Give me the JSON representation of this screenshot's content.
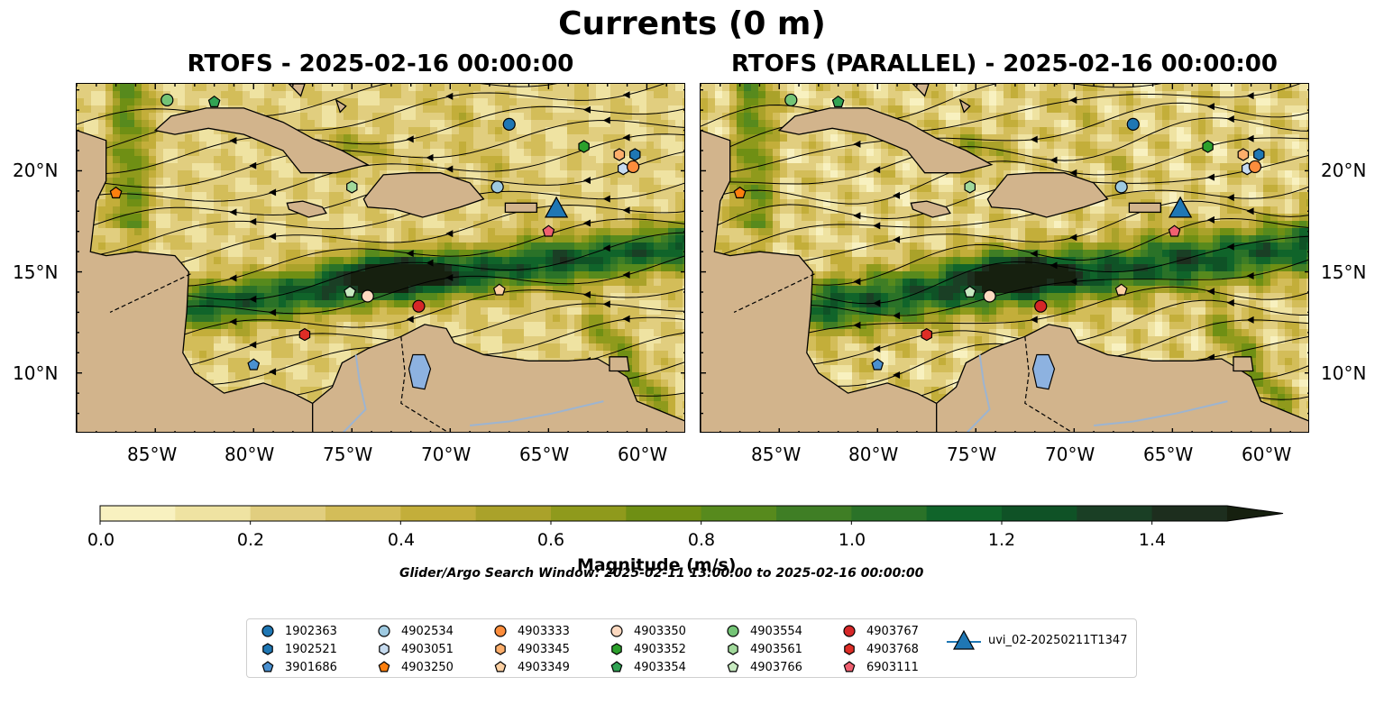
{
  "figure": {
    "suptitle": "Currents (0 m)",
    "left_title": "RTOFS - 2025-02-16 00:00:00",
    "right_title": "RTOFS (PARALLEL) - 2025-02-16 00:00:00",
    "lat_ticks": [
      "20°N",
      "15°N",
      "10°N"
    ],
    "lon_ticks": [
      "85°W",
      "80°W",
      "75°W",
      "70°W",
      "65°W",
      "60°W"
    ],
    "search_window": "Glider/Argo Search Window: 2025-02-11 13:00:00 to 2025-02-16 00:00:00"
  },
  "map": {
    "extent": {
      "lon": [
        -89,
        -58
      ],
      "lat": [
        7,
        24.3
      ]
    },
    "land_color": "#d2b48c",
    "lake_color": "#8db2e0",
    "river_color": "#9db4d0"
  },
  "colorbar": {
    "label": "Magnitude (m/s)",
    "ticks": [
      "0.0",
      "0.2",
      "0.4",
      "0.6",
      "0.8",
      "1.0",
      "1.2",
      "1.4"
    ],
    "levels": [
      0,
      0.1,
      0.2,
      0.3,
      0.4,
      0.5,
      0.6,
      0.7,
      0.8,
      0.9,
      1.0,
      1.1,
      1.2,
      1.3,
      1.4,
      1.5
    ],
    "colors": [
      "#f8f1c0",
      "#efe3a2",
      "#e1ce7f",
      "#d3bd59",
      "#c3ae3a",
      "#aaa22a",
      "#8f9a1c",
      "#6f8f14",
      "#578a1d",
      "#3f7e25",
      "#2a7228",
      "#10642a",
      "#0f5226",
      "#1a3f25",
      "#1d2e1e"
    ],
    "extend_color": "#16200f"
  },
  "legend": {
    "entries": [
      {
        "label": "1902363",
        "marker": "circle",
        "color": "#1f77b4"
      },
      {
        "label": "1902521",
        "marker": "hexagon",
        "color": "#1f77b4"
      },
      {
        "label": "3901686",
        "marker": "pentagon",
        "color": "#4a90d0"
      },
      {
        "label": "4902534",
        "marker": "circle",
        "color": "#9ecae1"
      },
      {
        "label": "4903051",
        "marker": "hexagon",
        "color": "#c6dbef"
      },
      {
        "label": "4903250",
        "marker": "pentagon",
        "color": "#fd7f0e"
      },
      {
        "label": "4903333",
        "marker": "circle",
        "color": "#fd8d3c"
      },
      {
        "label": "4903345",
        "marker": "hexagon",
        "color": "#fdae6b"
      },
      {
        "label": "4903349",
        "marker": "pentagon",
        "color": "#fdd0a2"
      },
      {
        "label": "4903350",
        "marker": "circle",
        "color": "#fdd9c0"
      },
      {
        "label": "4903352",
        "marker": "hexagon",
        "color": "#2ca02c"
      },
      {
        "label": "4903354",
        "marker": "pentagon",
        "color": "#31a354"
      },
      {
        "label": "4903554",
        "marker": "circle",
        "color": "#74c476"
      },
      {
        "label": "4903561",
        "marker": "hexagon",
        "color": "#a1d99b"
      },
      {
        "label": "4903766",
        "marker": "pentagon",
        "color": "#c7e9c0"
      },
      {
        "label": "4903767",
        "marker": "circle",
        "color": "#d62728"
      },
      {
        "label": "4903768",
        "marker": "hexagon",
        "color": "#de2d26"
      },
      {
        "label": "6903111",
        "marker": "pentagon",
        "color": "#f06070"
      },
      {
        "label": "uvi_02-20250211T1347",
        "marker": "triangle",
        "color": "#1f77b4"
      }
    ]
  },
  "platforms": {
    "left": [
      {
        "id": "1902363",
        "lon": -67.0,
        "lat": 22.3
      },
      {
        "id": "4902534",
        "lon": -67.6,
        "lat": 19.2
      },
      {
        "id": "4903051",
        "lon": -61.2,
        "lat": 20.1
      },
      {
        "id": "1902521",
        "lon": -60.6,
        "lat": 20.8
      },
      {
        "id": "4903333",
        "lon": -60.7,
        "lat": 20.2
      },
      {
        "id": "4903345",
        "lon": -61.4,
        "lat": 20.8
      },
      {
        "id": "4903352",
        "lon": -63.2,
        "lat": 21.2
      },
      {
        "id": "4903554",
        "lon": -84.4,
        "lat": 23.5
      },
      {
        "id": "4903354",
        "lon": -82.0,
        "lat": 23.4
      },
      {
        "id": "4903250",
        "lon": -87.0,
        "lat": 18.9
      },
      {
        "id": "4903561",
        "lon": -75.0,
        "lat": 19.2
      },
      {
        "id": "uvi_02-20250211T1347",
        "lon": -64.6,
        "lat": 18.1
      },
      {
        "id": "6903111",
        "lon": -65.0,
        "lat": 17.0
      },
      {
        "id": "4903349",
        "lon": -67.5,
        "lat": 14.1
      },
      {
        "id": "4903766",
        "lon": -75.1,
        "lat": 14.0
      },
      {
        "id": "4903350",
        "lon": -74.2,
        "lat": 13.8
      },
      {
        "id": "4903767",
        "lon": -71.6,
        "lat": 13.3
      },
      {
        "id": "4903768",
        "lon": -77.4,
        "lat": 11.9
      },
      {
        "id": "3901686",
        "lon": -80.0,
        "lat": 10.4
      }
    ],
    "right": [
      {
        "id": "1902363",
        "lon": -67.0,
        "lat": 22.3
      },
      {
        "id": "4902534",
        "lon": -67.6,
        "lat": 19.2
      },
      {
        "id": "4903051",
        "lon": -61.2,
        "lat": 20.1
      },
      {
        "id": "1902521",
        "lon": -60.6,
        "lat": 20.8
      },
      {
        "id": "4903333",
        "lon": -60.8,
        "lat": 20.2
      },
      {
        "id": "4903345",
        "lon": -61.4,
        "lat": 20.8
      },
      {
        "id": "4903352",
        "lon": -63.2,
        "lat": 21.2
      },
      {
        "id": "4903554",
        "lon": -84.4,
        "lat": 23.5
      },
      {
        "id": "4903354",
        "lon": -82.0,
        "lat": 23.4
      },
      {
        "id": "4903250",
        "lon": -87.0,
        "lat": 18.9
      },
      {
        "id": "4903561",
        "lon": -75.3,
        "lat": 19.2
      },
      {
        "id": "uvi_02-20250211T1347",
        "lon": -64.6,
        "lat": 18.1
      },
      {
        "id": "6903111",
        "lon": -64.9,
        "lat": 17.0
      },
      {
        "id": "4903349",
        "lon": -67.6,
        "lat": 14.1
      },
      {
        "id": "4903766",
        "lon": -75.3,
        "lat": 14.0
      },
      {
        "id": "4903350",
        "lon": -74.3,
        "lat": 13.8
      },
      {
        "id": "4903767",
        "lon": -71.7,
        "lat": 13.3
      },
      {
        "id": "4903768",
        "lon": -77.5,
        "lat": 11.9
      },
      {
        "id": "3901686",
        "lon": -80.0,
        "lat": 10.4
      }
    ]
  }
}
